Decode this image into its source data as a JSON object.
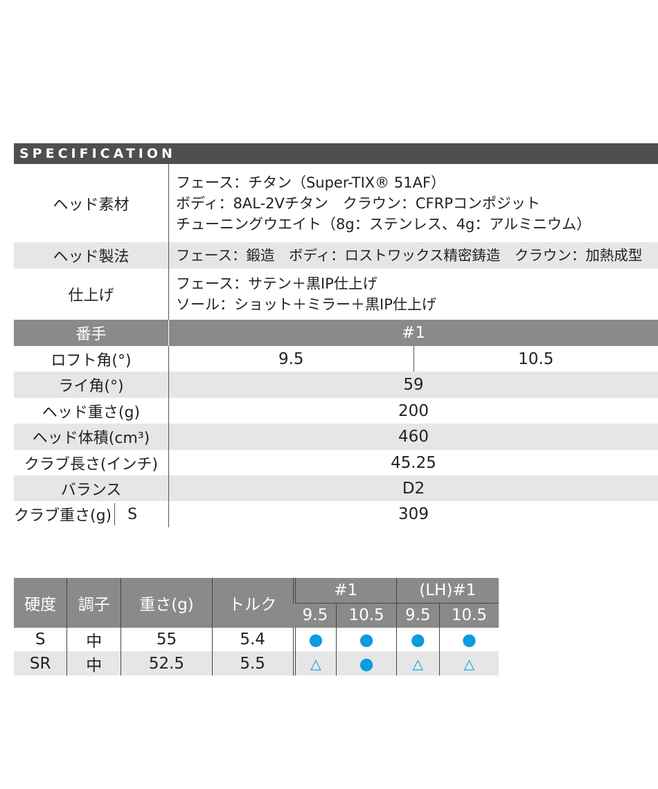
{
  "spec": {
    "title": "SPECIFICATION",
    "head_material": {
      "label": "ヘッド素材",
      "lines": [
        "フェース：チタン（Super-TIX® 51AF）",
        "ボディ：8AL-2Vチタン　クラウン：CFRPコンポジット",
        "チューニングウエイト（8g：ステンレス、4g：アルミニウム）"
      ]
    },
    "head_method": {
      "label": "ヘッド製法",
      "value": "フェース：鍛造　ボディ：ロストワックス精密鋳造　クラウン：加熱成型"
    },
    "finish": {
      "label": "仕上げ",
      "lines": [
        "フェース：サテン＋黒IP仕上げ",
        "ソール：ショット＋ミラー＋黒IP仕上げ"
      ]
    },
    "number": {
      "label": "番手",
      "value": "#1"
    },
    "loft": {
      "label": "ロフト角(°)",
      "values": [
        "9.5",
        "10.5"
      ]
    },
    "lie": {
      "label": "ライ角(°)",
      "value": "59"
    },
    "head_weight": {
      "label": "ヘッド重さ(g)",
      "value": "200"
    },
    "head_volume": {
      "label": "ヘッド体積(cm³)",
      "value": "460"
    },
    "length": {
      "label": "クラブ長さ(インチ)",
      "value": "45.25"
    },
    "balance": {
      "label": "バランス",
      "value": "D2"
    },
    "club_weight": {
      "label": "クラブ重さ(g)",
      "flex": "S",
      "value": "309"
    }
  },
  "shaft": {
    "headers": [
      "硬度",
      "調子",
      "重さ(g)",
      "トルク"
    ],
    "groups": [
      "#1",
      "(LH)#1"
    ],
    "lofts": [
      "9.5",
      "10.5",
      "9.5",
      "10.5"
    ],
    "rows": [
      {
        "cells": [
          "S",
          "中",
          "55",
          "5.4"
        ],
        "avail": [
          "●",
          "●",
          "●",
          "●"
        ]
      },
      {
        "cells": [
          "SR",
          "中",
          "52.5",
          "5.5"
        ],
        "avail": [
          "△",
          "●",
          "△",
          "△"
        ]
      }
    ],
    "accent": "#0a9be0"
  }
}
